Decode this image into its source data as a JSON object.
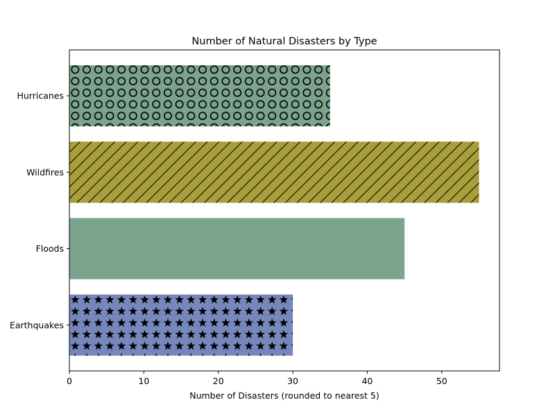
{
  "chart_data": {
    "type": "bar",
    "orientation": "horizontal",
    "title": "Number of Natural Disasters by Type",
    "xlabel": "Number of Disasters (rounded to nearest 5)",
    "ylabel": "",
    "categories": [
      "Hurricanes",
      "Wildfires",
      "Floods",
      "Earthquakes"
    ],
    "values": [
      35,
      55,
      45,
      30
    ],
    "colors": [
      "#7ba38e",
      "#a89f3a",
      "#7ba38e",
      "#7587bb"
    ],
    "patterns": [
      "circles",
      "diagonal",
      "none",
      "stars"
    ],
    "xlim": [
      0,
      57.75
    ],
    "xticks": [
      0,
      10,
      20,
      30,
      40,
      50
    ],
    "grid": false
  }
}
